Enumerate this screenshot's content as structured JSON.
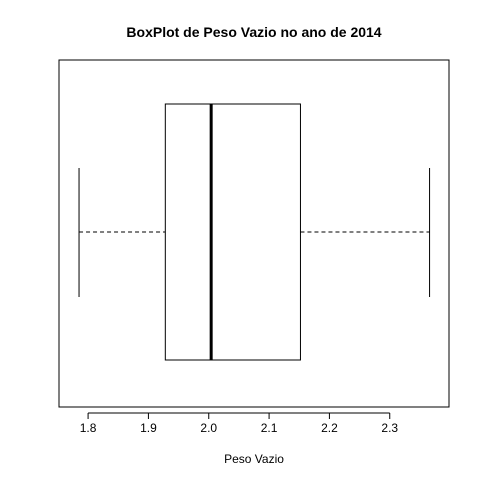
{
  "chart_data": {
    "type": "boxplot",
    "orientation": "horizontal",
    "title": "BoxPlot de Peso Vazio no ano de 2014",
    "xlabel": "Peso Vazio",
    "ylabel": "",
    "xlim": [
      1.775,
      2.375
    ],
    "ticks": [
      {
        "value": 1.8,
        "label": "1.8"
      },
      {
        "value": 1.9,
        "label": "1.9"
      },
      {
        "value": 2.0,
        "label": "2.0"
      },
      {
        "value": 2.1,
        "label": "2.1"
      },
      {
        "value": 2.2,
        "label": "2.2"
      },
      {
        "value": 2.3,
        "label": "2.3"
      }
    ],
    "box": {
      "whisker_low": 1.785,
      "q1": 1.928,
      "median": 2.004,
      "q3": 2.152,
      "whisker_high": 2.366
    },
    "grid": false,
    "legend": "none"
  }
}
